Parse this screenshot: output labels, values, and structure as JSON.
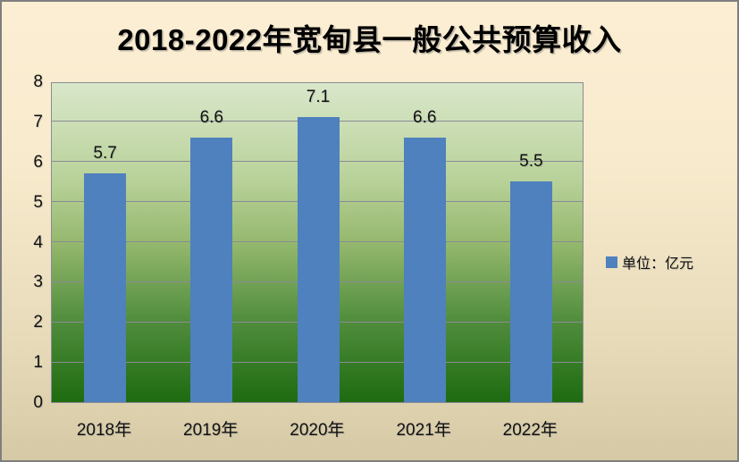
{
  "chart_data": {
    "type": "bar",
    "title": "2018-2022年宽甸县一般公共预算收入",
    "categories": [
      "2018年",
      "2019年",
      "2020年",
      "2021年",
      "2022年"
    ],
    "values": [
      5.7,
      6.6,
      7.1,
      6.6,
      5.5
    ],
    "data_labels": [
      "5.7",
      "6.6",
      "7.1",
      "6.6",
      "5.5"
    ],
    "ylim": [
      0,
      8
    ],
    "yticks": [
      0,
      1,
      2,
      3,
      4,
      5,
      6,
      7,
      8
    ],
    "grid": true,
    "legend": {
      "label": "单位：亿元",
      "position": "right",
      "marker": "square"
    },
    "colors": {
      "bar": "#4e81bd",
      "plot_gradient_top": "#d9e7ca",
      "plot_gradient_bottom": "#1e6b10",
      "background_top": "#fceed3",
      "background_bottom": "#d5c9a5",
      "gridline": "#8b8b94",
      "text": "#111111"
    }
  }
}
